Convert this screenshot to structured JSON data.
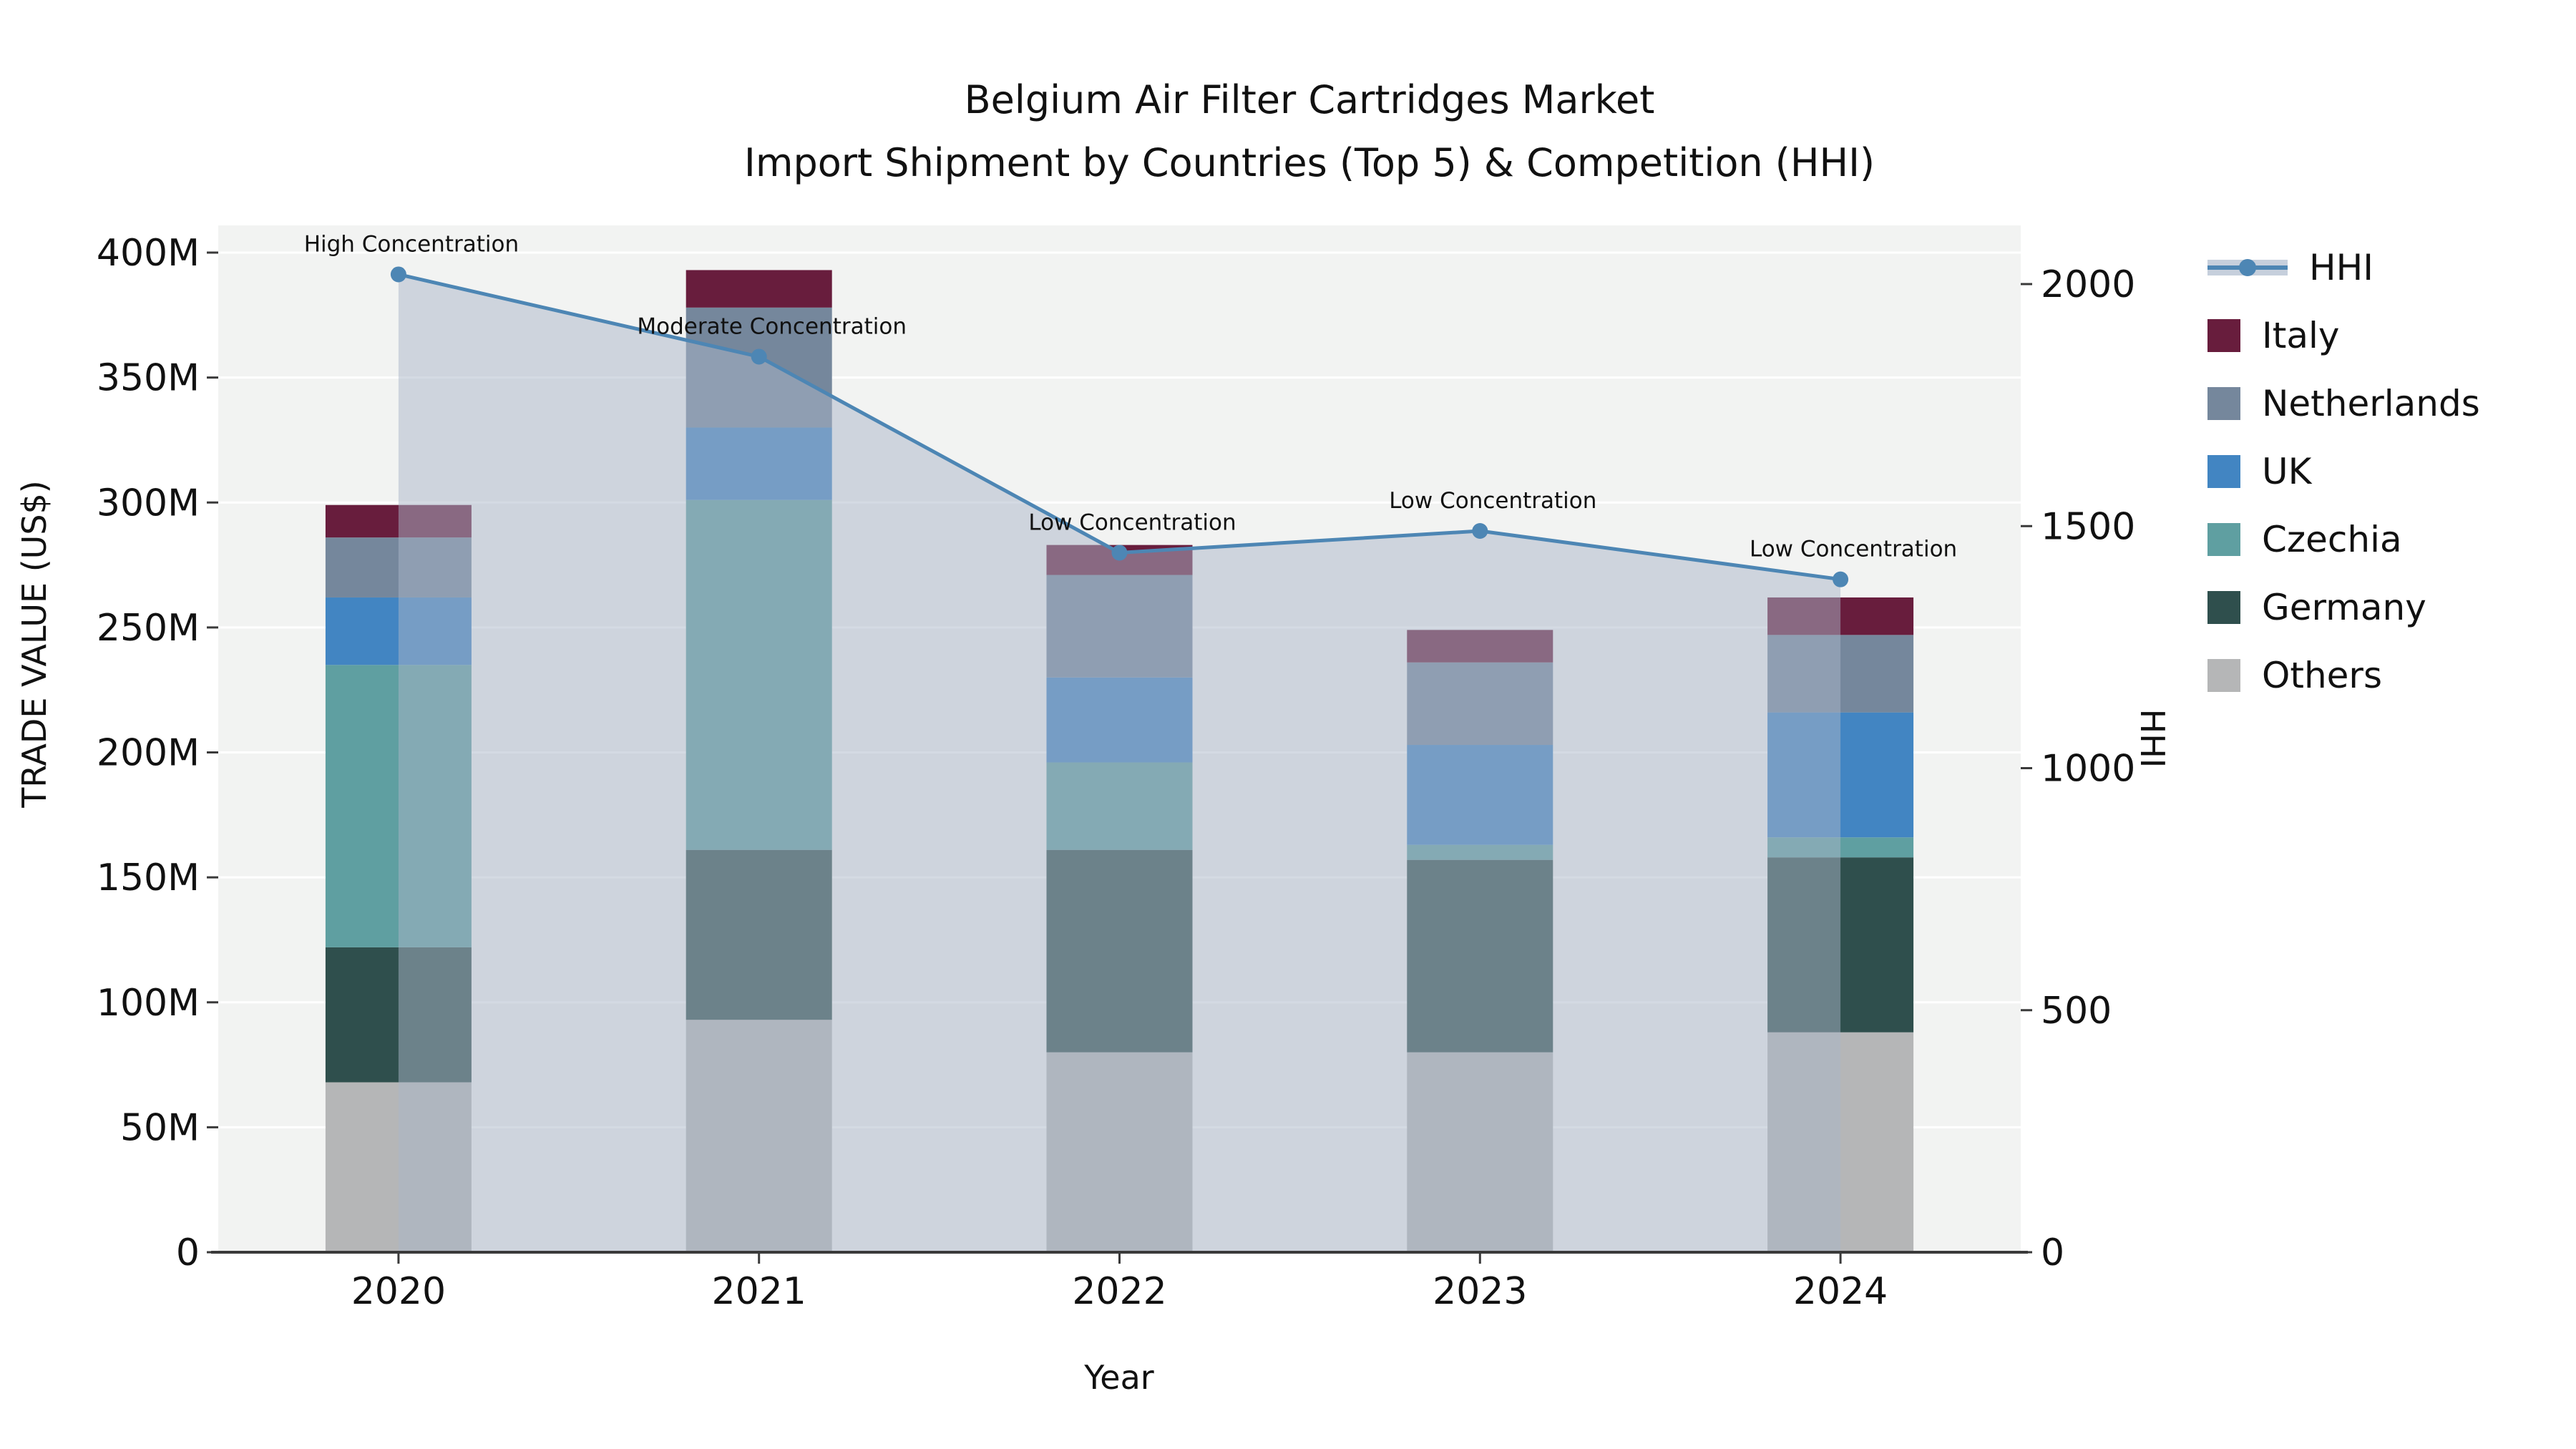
{
  "title": {
    "line1": "Belgium Air Filter Cartridges Market",
    "line2": "Import Shipment by Countries (Top 5) & Competition (HHI)"
  },
  "axes": {
    "y_left_label": "TRADE VALUE (US$)",
    "y_right_label": "HHI",
    "x_label": "Year"
  },
  "chart_data": {
    "type": "combo: stacked-bar (trade value by country) + area-line (HHI, secondary axis)",
    "categories": [
      "2020",
      "2021",
      "2022",
      "2023",
      "2024"
    ],
    "value_unit": "millions US$",
    "series": [
      {
        "name": "Others",
        "color": "#b5b6b7",
        "values": [
          68,
          93,
          80,
          80,
          88
        ]
      },
      {
        "name": "Germany",
        "color": "#2f4f4d",
        "values": [
          54,
          68,
          81,
          77,
          70
        ]
      },
      {
        "name": "Czechia",
        "color": "#5f9fa1",
        "values": [
          113,
          140,
          35,
          6,
          8
        ]
      },
      {
        "name": "UK",
        "color": "#4285c2",
        "values": [
          27,
          29,
          34,
          40,
          50
        ]
      },
      {
        "name": "Netherlands",
        "color": "#75879c",
        "values": [
          24,
          48,
          41,
          33,
          31
        ]
      },
      {
        "name": "Italy",
        "color": "#681d3d",
        "values": [
          13,
          15,
          12,
          13,
          15
        ]
      }
    ],
    "bar_totals": [
      299,
      393,
      283,
      249,
      262
    ],
    "hhi": {
      "name": "HHI",
      "values": [
        2020,
        1850,
        1445,
        1490,
        1390
      ],
      "line_color": "#4d86b4",
      "fill_color": "#aab5c7",
      "fill_opacity": 0.5
    },
    "annotations": [
      {
        "category": "2020",
        "text": "High Concentration"
      },
      {
        "category": "2021",
        "text": "Moderate Concentration"
      },
      {
        "category": "2022",
        "text": "Low Concentration"
      },
      {
        "category": "2023",
        "text": "Low Concentration"
      },
      {
        "category": "2024",
        "text": "Low Concentration"
      }
    ],
    "y_left": {
      "ticks": [
        "0",
        "50M",
        "100M",
        "150M",
        "200M",
        "250M",
        "300M",
        "350M",
        "400M"
      ],
      "tick_step_value": 50,
      "range": [
        0,
        411
      ]
    },
    "y_right": {
      "ticks": [
        "0",
        "500",
        "1000",
        "1500",
        "2000"
      ],
      "tick_step_value": 500,
      "range": [
        0,
        2121
      ]
    },
    "grid": "horizontal white lines every 50M on light gray panel",
    "legend_position": "right, outside plot",
    "legend": [
      {
        "key": "hhi",
        "label": "HHI",
        "glyph": "line-marker-on-band"
      },
      {
        "key": "italy",
        "label": "Italy",
        "color": "#681d3d"
      },
      {
        "key": "netherlands",
        "label": "Netherlands",
        "color": "#75879c"
      },
      {
        "key": "uk",
        "label": "UK",
        "color": "#4285c2"
      },
      {
        "key": "czechia",
        "label": "Czechia",
        "color": "#5f9fa1"
      },
      {
        "key": "germany",
        "label": "Germany",
        "color": "#2f4f4d"
      },
      {
        "key": "others",
        "label": "Others",
        "color": "#b5b6b7"
      }
    ]
  },
  "colors": {
    "plot_background": "#f2f3f2",
    "gridline": "#ffffff",
    "spine": "#3a3a3a",
    "text": "#111111"
  }
}
